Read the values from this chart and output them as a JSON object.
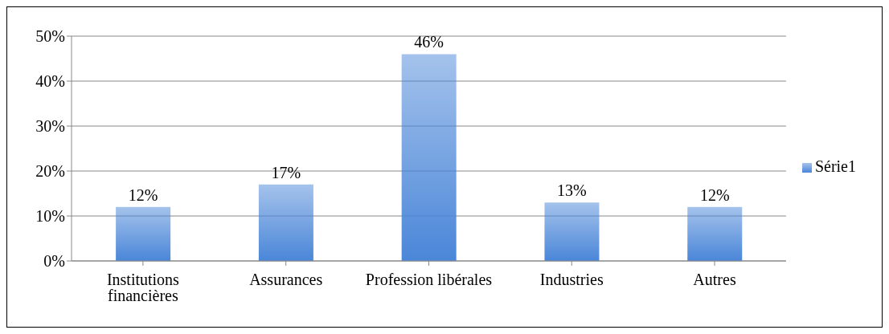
{
  "chart_data": {
    "type": "bar",
    "categories": [
      "Institutions financières",
      "Assurances",
      "Profession libérales",
      "Industries",
      "Autres"
    ],
    "series": [
      {
        "name": "Série1",
        "color": "#4a86d8",
        "values": [
          12,
          17,
          46,
          13,
          12
        ]
      }
    ],
    "ylim": [
      0,
      50
    ],
    "yticks": [
      {
        "value": 0,
        "label": "0%"
      },
      {
        "value": 10,
        "label": "10%"
      },
      {
        "value": 20,
        "label": "20%"
      },
      {
        "value": 30,
        "label": "30%"
      },
      {
        "value": 40,
        "label": "40%"
      },
      {
        "value": 50,
        "label": "50%"
      }
    ],
    "value_labels": [
      "12%",
      "17%",
      "46%",
      "13%",
      "12%"
    ],
    "grid": "y",
    "legend": "right"
  }
}
